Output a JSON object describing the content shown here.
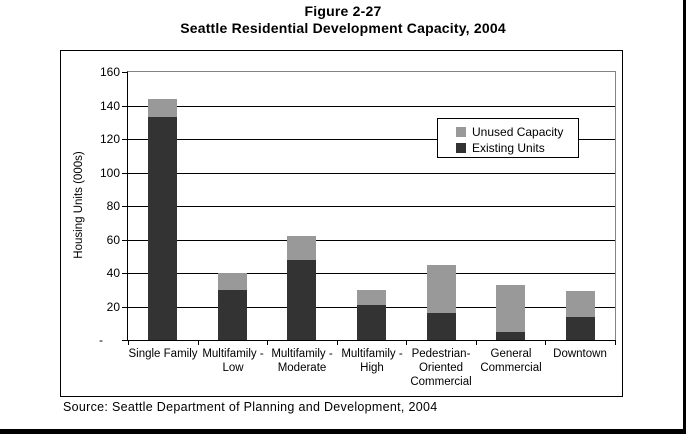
{
  "page": {
    "title_line1": "Figure 2-27",
    "title_line2": "Seattle Residential Development Capacity, 2004",
    "source": "Source: Seattle Department of Planning and Development, 2004"
  },
  "chart_data": {
    "type": "bar",
    "stacked": true,
    "title": "Figure 2-27",
    "subtitle": "Seattle Residential Development Capacity, 2004",
    "xlabel": "",
    "ylabel": "Housing Units (000s)",
    "ylim": [
      0,
      160
    ],
    "ytick_interval": 20,
    "ytick_labels": [
      "-",
      "20",
      "40",
      "60",
      "80",
      "100",
      "120",
      "140",
      "160"
    ],
    "grid": true,
    "legend_position": "inside upper right",
    "categories": [
      "Single Family",
      "Multifamily - Low",
      "Multifamily - Moderate",
      "Multifamily - High",
      "Pedestrian-Oriented Commercial",
      "General Commercial",
      "Downtown"
    ],
    "category_label_lines": [
      [
        "Single Family"
      ],
      [
        "Multifamily -",
        "Low"
      ],
      [
        "Multifamily -",
        "Moderate"
      ],
      [
        "Multifamily -",
        "High"
      ],
      [
        "Pedestrian-",
        "Oriented",
        "Commercial"
      ],
      [
        "General",
        "Commercial"
      ],
      [
        "Downtown"
      ]
    ],
    "series": [
      {
        "name": "Existing Units",
        "color": "#333333",
        "values": [
          133,
          30,
          48,
          21,
          16,
          5,
          14
        ]
      },
      {
        "name": "Unused Capacity",
        "color": "#999999",
        "values": [
          11,
          10,
          14,
          9,
          29,
          28,
          15
        ]
      }
    ]
  },
  "legend": {
    "items": [
      {
        "label": "Unused Capacity",
        "color": "#999999"
      },
      {
        "label": "Existing Units",
        "color": "#333333"
      }
    ]
  },
  "colors": {
    "existing": "#333333",
    "unused": "#999999",
    "plot_border": "#848484",
    "axis": "#000000",
    "gridline": "#000000"
  }
}
